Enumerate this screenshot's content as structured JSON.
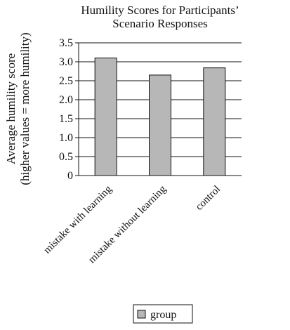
{
  "chart_data": {
    "type": "bar",
    "title_lines": [
      "Humility Scores for Participants’",
      "Scenario Responses"
    ],
    "ylabel_lines": [
      "Average humility score",
      "(higher values = more humility)"
    ],
    "xlabel": "",
    "categories": [
      "mistake with learning",
      "mistake without learning",
      "control"
    ],
    "series": [
      {
        "name": "group",
        "values": [
          3.1,
          2.65,
          2.84
        ]
      }
    ],
    "ylim": [
      0,
      3.5
    ],
    "yticks": [
      "0",
      "0.5",
      "1.0",
      "1.5",
      "2.0",
      "2.5",
      "3.0",
      "3.5"
    ],
    "grid": true,
    "legend_position": "bottom",
    "colors": {
      "bar": "#b7b7b7",
      "edge": "#111111",
      "grid": "#111111"
    }
  }
}
